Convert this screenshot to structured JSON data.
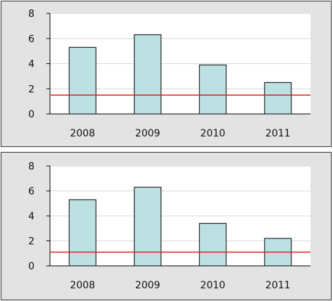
{
  "colors": {
    "panel_background": "#e3e3e3",
    "plot_background": "#ffffff",
    "bar_fill": "#bde0e2",
    "bar_stroke": "#000000",
    "reference_line": "#e0201c",
    "gridline": "#d9d9d9"
  },
  "chart_data": [
    {
      "type": "bar",
      "categories": [
        "2008",
        "2009",
        "2010",
        "2011"
      ],
      "values": [
        5.3,
        6.3,
        3.9,
        2.5
      ],
      "reference_line": 1.5,
      "ylim": [
        0,
        8
      ],
      "yticks": [
        "0",
        "2",
        "4",
        "6",
        "8"
      ],
      "grid": true,
      "title": "",
      "xlabel": "",
      "ylabel": ""
    },
    {
      "type": "bar",
      "categories": [
        "2008",
        "2009",
        "2010",
        "2011"
      ],
      "values": [
        5.3,
        6.3,
        3.4,
        2.2
      ],
      "reference_line": 1.1,
      "ylim": [
        0,
        8
      ],
      "yticks": [
        "0",
        "2",
        "4",
        "6",
        "8"
      ],
      "grid": true,
      "title": "",
      "xlabel": "",
      "ylabel": ""
    }
  ]
}
